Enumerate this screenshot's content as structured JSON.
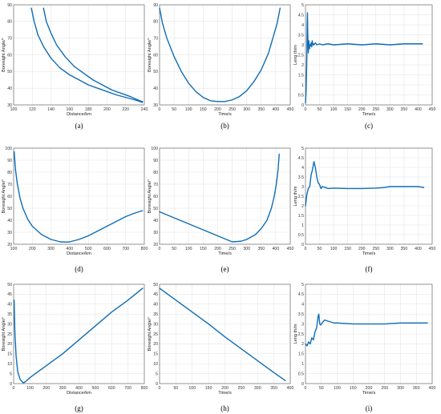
{
  "chart_data": [
    {
      "id": "a",
      "type": "line",
      "caption": "(a)",
      "xlabel": "Distance/km",
      "ylabel": "Boresight Angle/°",
      "xlim": [
        100,
        240
      ],
      "ylim": [
        30,
        90
      ],
      "xticks": [
        100,
        120,
        140,
        160,
        180,
        200,
        220,
        240
      ],
      "yticks": [
        30,
        40,
        50,
        60,
        70,
        80,
        90
      ],
      "grid": true,
      "series": [
        {
          "x": [
            119,
            122,
            126,
            132,
            140,
            150,
            160,
            170,
            180,
            190,
            200,
            210,
            220,
            230,
            238
          ],
          "y": [
            88,
            80,
            72,
            65,
            58,
            52,
            48,
            45,
            42,
            40,
            38,
            36,
            34.5,
            33,
            31.5
          ]
        },
        {
          "x": [
            132,
            135,
            140,
            146,
            155,
            165,
            175,
            185,
            195,
            205,
            215,
            225,
            235,
            238
          ],
          "y": [
            88,
            80,
            73,
            66,
            59,
            53,
            49,
            45,
            42,
            39,
            37,
            35,
            32.5,
            32
          ]
        }
      ]
    },
    {
      "id": "b",
      "type": "line",
      "caption": "(b)",
      "xlabel": "Time/s",
      "ylabel": "Boresight Angle/°",
      "xlim": [
        0,
        450
      ],
      "ylim": [
        30,
        90
      ],
      "xticks": [
        0,
        50,
        100,
        150,
        200,
        250,
        300,
        350,
        400,
        450
      ],
      "yticks": [
        30,
        40,
        50,
        60,
        70,
        80,
        90
      ],
      "grid": true,
      "series": [
        {
          "x": [
            0,
            10,
            25,
            50,
            75,
            100,
            125,
            150,
            175,
            200,
            225,
            250,
            275,
            300,
            325,
            350,
            375,
            390,
            405,
            415
          ],
          "y": [
            88,
            79,
            70,
            59,
            50,
            43,
            38,
            34.5,
            32.5,
            32,
            32,
            33,
            35,
            38.5,
            44,
            51,
            61,
            70,
            79,
            88
          ]
        }
      ]
    },
    {
      "id": "c",
      "type": "line",
      "caption": "(c)",
      "xlabel": "Time/s",
      "ylabel": "Leng th/m",
      "xlim": [
        0,
        450
      ],
      "ylim": [
        0,
        5
      ],
      "xticks": [
        0,
        50,
        100,
        150,
        200,
        250,
        300,
        350,
        400,
        450
      ],
      "yticks": [
        0,
        0.5,
        1,
        1.5,
        2,
        2.5,
        3,
        3.5,
        4,
        4.5,
        5
      ],
      "grid": true,
      "series": [
        {
          "x": [
            0,
            2,
            4,
            5,
            6,
            7,
            8,
            10,
            12,
            14,
            16,
            18,
            20,
            22,
            24,
            26,
            28,
            30,
            35,
            40,
            50,
            60,
            80,
            100,
            150,
            200,
            250,
            300,
            350,
            400,
            415
          ],
          "y": [
            0.1,
            0.6,
            1.8,
            2.6,
            4.1,
            4.6,
            3.6,
            2.6,
            3.2,
            2.8,
            3.0,
            2.95,
            3.1,
            2.9,
            3.2,
            3.0,
            3.05,
            3.0,
            3.1,
            3.0,
            3.05,
            3.0,
            3.05,
            3.0,
            3.05,
            3.0,
            3.05,
            3.0,
            3.05,
            3.05,
            3.05
          ]
        }
      ]
    },
    {
      "id": "d",
      "type": "line",
      "caption": "(d)",
      "xlabel": "Distance/km",
      "ylabel": "Boresight Angle/°",
      "xlim": [
        100,
        800
      ],
      "ylim": [
        20,
        100
      ],
      "xticks": [
        100,
        200,
        300,
        400,
        500,
        600,
        700,
        800
      ],
      "yticks": [
        20,
        30,
        40,
        50,
        60,
        70,
        80,
        90,
        100
      ],
      "grid": true,
      "series": [
        {
          "x": [
            103,
            110,
            120,
            135,
            150,
            175,
            200,
            250,
            300,
            350,
            380,
            400,
            450,
            500,
            550,
            600,
            650,
            700,
            750,
            790
          ],
          "y": [
            97,
            82,
            70,
            58,
            50,
            41,
            35,
            28,
            24,
            22,
            21.8,
            22,
            24,
            27,
            31,
            35,
            39,
            43,
            46,
            48
          ]
        }
      ]
    },
    {
      "id": "e",
      "type": "line",
      "caption": "(e)",
      "xlabel": "Time/s",
      "ylabel": "Boresight Angle/°",
      "xlim": [
        0,
        450
      ],
      "ylim": [
        20,
        100
      ],
      "xticks": [
        0,
        50,
        100,
        150,
        200,
        250,
        300,
        350,
        400,
        450
      ],
      "yticks": [
        20,
        30,
        40,
        50,
        60,
        70,
        80,
        90,
        100
      ],
      "grid": true,
      "series": [
        {
          "x": [
            0,
            50,
            100,
            150,
            200,
            250,
            280,
            300,
            330,
            350,
            370,
            385,
            395,
            402,
            408,
            412
          ],
          "y": [
            47,
            42,
            37,
            32,
            27,
            22,
            22.5,
            24,
            28,
            33,
            40,
            50,
            60,
            70,
            82,
            95
          ]
        }
      ]
    },
    {
      "id": "f",
      "type": "line",
      "caption": "(f)",
      "xlabel": "Time/s",
      "ylabel": "Leng th/m",
      "xlim": [
        0,
        450
      ],
      "ylim": [
        0,
        5
      ],
      "xticks": [
        0,
        50,
        100,
        150,
        200,
        250,
        300,
        350,
        400,
        450
      ],
      "yticks": [
        0,
        0.5,
        1,
        1.5,
        2,
        2.5,
        3,
        3.5,
        4,
        4.5,
        5
      ],
      "grid": true,
      "series": [
        {
          "x": [
            0,
            5,
            10,
            15,
            20,
            25,
            30,
            35,
            40,
            45,
            50,
            55,
            60,
            70,
            80,
            100,
            150,
            200,
            250,
            280,
            300,
            350,
            400,
            420
          ],
          "y": [
            2.0,
            2.6,
            2.9,
            3.0,
            3.6,
            3.9,
            4.3,
            4.0,
            3.5,
            3.2,
            3.1,
            2.9,
            3.0,
            2.95,
            2.9,
            2.92,
            2.9,
            2.9,
            2.92,
            2.95,
            3.0,
            3.0,
            3.0,
            2.95
          ]
        }
      ]
    },
    {
      "id": "g",
      "type": "line",
      "caption": "(g)",
      "xlabel": "Distance/km",
      "ylabel": "Boresight Angle/°",
      "xlim": [
        0,
        800
      ],
      "ylim": [
        0,
        50
      ],
      "xticks": [
        0,
        100,
        200,
        300,
        400,
        500,
        600,
        700,
        800
      ],
      "yticks": [
        0,
        5,
        10,
        15,
        20,
        25,
        30,
        35,
        40,
        45,
        50
      ],
      "grid": true,
      "series": [
        {
          "x": [
            3,
            8,
            15,
            25,
            40,
            60,
            80,
            100,
            150,
            200,
            300,
            400,
            500,
            600,
            700,
            790
          ],
          "y": [
            42,
            25,
            14,
            6,
            2,
            0.3,
            1.5,
            3,
            6,
            9,
            15,
            22,
            29,
            36,
            42,
            48
          ]
        }
      ]
    },
    {
      "id": "h",
      "type": "line",
      "caption": "(h)",
      "xlabel": "Time/s",
      "ylabel": "Boresight Angle/°",
      "xlim": [
        0,
        400
      ],
      "ylim": [
        0,
        50
      ],
      "xticks": [
        0,
        50,
        100,
        150,
        200,
        250,
        300,
        350,
        400
      ],
      "yticks": [
        0,
        5,
        10,
        15,
        20,
        25,
        30,
        35,
        40,
        45,
        50
      ],
      "grid": true,
      "series": [
        {
          "x": [
            0,
            25,
            50,
            100,
            150,
            200,
            250,
            300,
            350,
            385
          ],
          "y": [
            48,
            45,
            42,
            36,
            30,
            23.5,
            17.5,
            11.5,
            5.5,
            1.5
          ]
        }
      ]
    },
    {
      "id": "i",
      "type": "line",
      "caption": "(i)",
      "xlabel": "Time/s",
      "ylabel": "Leng th/m",
      "xlim": [
        0,
        400
      ],
      "ylim": [
        0,
        5
      ],
      "xticks": [
        0,
        50,
        100,
        150,
        200,
        250,
        300,
        350,
        400
      ],
      "yticks": [
        0,
        0.5,
        1,
        1.5,
        2,
        2.5,
        3,
        3.5,
        4,
        4.5,
        5
      ],
      "grid": true,
      "series": [
        {
          "x": [
            0,
            5,
            10,
            15,
            20,
            25,
            30,
            35,
            40,
            42,
            45,
            48,
            50,
            55,
            60,
            70,
            80,
            90,
            100,
            150,
            200,
            250,
            300,
            350,
            385
          ],
          "y": [
            2.0,
            1.9,
            2.1,
            2.0,
            2.3,
            2.2,
            2.6,
            2.8,
            3.4,
            3.5,
            3.0,
            2.95,
            3.0,
            3.1,
            3.2,
            3.15,
            3.1,
            3.05,
            3.05,
            3.0,
            3.0,
            3.0,
            3.05,
            3.05,
            3.05
          ]
        }
      ]
    }
  ]
}
